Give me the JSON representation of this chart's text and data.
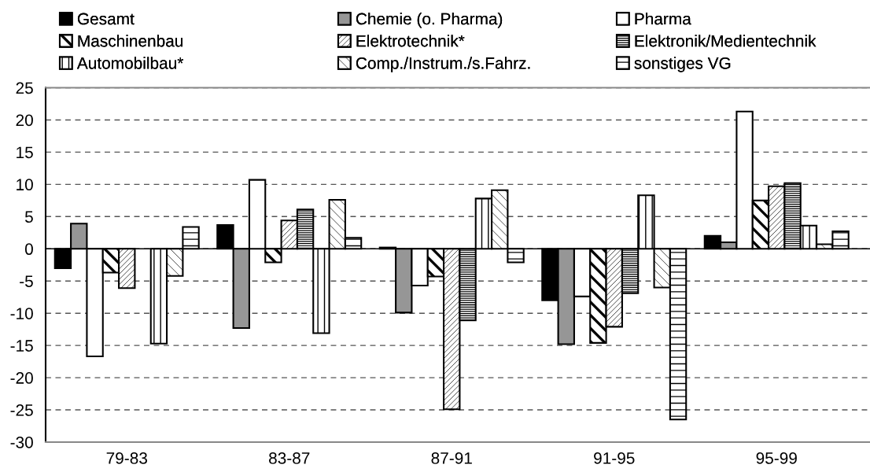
{
  "chart_data": {
    "type": "bar",
    "categories": [
      "79-83",
      "83-87",
      "87-91",
      "91-95",
      "95-99"
    ],
    "series": [
      {
        "name": "Gesamt",
        "color": "#000000",
        "values": [
          -3.0,
          3.7,
          0.2,
          -8.0,
          2.0
        ]
      },
      {
        "name": "Chemie (o. Pharma)",
        "color": "#969696",
        "values": [
          3.9,
          -12.3,
          -9.9,
          -14.8,
          1.0
        ]
      },
      {
        "name": "Pharma",
        "color": "#ffffff",
        "values": [
          -16.7,
          10.7,
          -5.7,
          -7.4,
          21.3
        ]
      },
      {
        "name": "Maschinenbau",
        "color": "#000000",
        "values": [
          -3.7,
          -2.1,
          -4.3,
          -14.6,
          7.5
        ]
      },
      {
        "name": "Elektrotechnik*",
        "color": "#000000",
        "values": [
          -6.1,
          4.4,
          -24.9,
          -12.1,
          9.7
        ]
      },
      {
        "name": "Elektronik/Medientechnik",
        "color": "#000000",
        "values": [
          null,
          6.1,
          -11.1,
          -6.9,
          10.2
        ]
      },
      {
        "name": "Automobilbau*",
        "color": "#000000",
        "values": [
          -14.7,
          -13.1,
          7.8,
          8.3,
          3.6
        ]
      },
      {
        "name": "Comp./Instrum./s.Fahrz.",
        "color": "#000000",
        "values": [
          -4.2,
          7.6,
          9.1,
          -6.0,
          0.7
        ]
      },
      {
        "name": "sonstiges VG",
        "color": "#000000",
        "values": [
          3.4,
          1.7,
          -2.1,
          -26.5,
          2.7
        ]
      }
    ],
    "ylim": [
      -30,
      25
    ],
    "yticks": [
      -30,
      -25,
      -20,
      -15,
      -10,
      -5,
      0,
      5,
      10,
      15,
      20,
      25
    ],
    "grid": "y",
    "legend": "top"
  }
}
